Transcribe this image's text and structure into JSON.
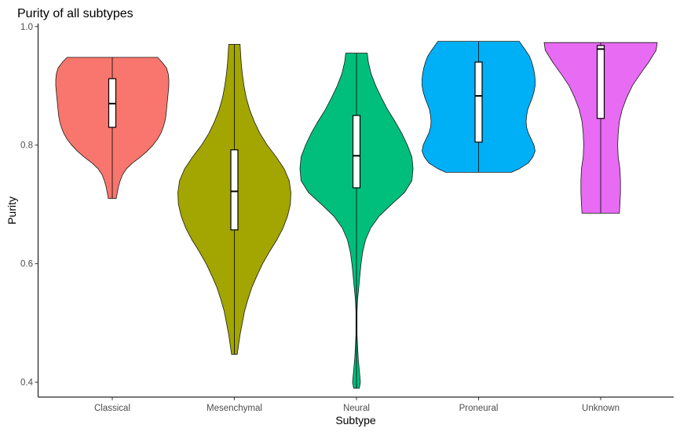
{
  "chart_data": {
    "type": "violin",
    "title": "Purity of all subtypes",
    "xlabel": "Subtype",
    "ylabel": "Purity",
    "ylim": [
      0.375,
      1.005
    ],
    "yticks": [
      0.4,
      0.6,
      0.8,
      1.0
    ],
    "ytick_labels": [
      "0.4",
      "0.6",
      "0.8",
      "1.0"
    ],
    "grid": false,
    "legend": "none",
    "categories": [
      "Classical",
      "Mesenchymal",
      "Neural",
      "Proneural",
      "Unknown"
    ],
    "series": [
      {
        "category": "Classical",
        "color": "#F8766D",
        "min": 0.71,
        "q1": 0.83,
        "median": 0.87,
        "q3": 0.912,
        "max": 0.948,
        "density": [
          [
            0.71,
            0.07
          ],
          [
            0.72,
            0.09
          ],
          [
            0.73,
            0.11
          ],
          [
            0.74,
            0.14
          ],
          [
            0.75,
            0.18
          ],
          [
            0.76,
            0.25
          ],
          [
            0.77,
            0.36
          ],
          [
            0.78,
            0.5
          ],
          [
            0.79,
            0.62
          ],
          [
            0.8,
            0.72
          ],
          [
            0.81,
            0.8
          ],
          [
            0.82,
            0.86
          ],
          [
            0.83,
            0.9
          ],
          [
            0.84,
            0.93
          ],
          [
            0.85,
            0.95
          ],
          [
            0.86,
            0.96
          ],
          [
            0.87,
            0.97
          ],
          [
            0.88,
            0.98
          ],
          [
            0.89,
            0.99
          ],
          [
            0.9,
            1.0
          ],
          [
            0.91,
            1.0
          ],
          [
            0.92,
            0.99
          ],
          [
            0.93,
            0.96
          ],
          [
            0.94,
            0.88
          ],
          [
            0.948,
            0.8
          ]
        ]
      },
      {
        "category": "Mesenchymal",
        "color": "#A3A500",
        "min": 0.447,
        "q1": 0.657,
        "median": 0.722,
        "q3": 0.792,
        "max": 0.97,
        "density": [
          [
            0.447,
            0.05
          ],
          [
            0.46,
            0.07
          ],
          [
            0.48,
            0.1
          ],
          [
            0.5,
            0.14
          ],
          [
            0.52,
            0.18
          ],
          [
            0.54,
            0.24
          ],
          [
            0.56,
            0.31
          ],
          [
            0.58,
            0.4
          ],
          [
            0.6,
            0.5
          ],
          [
            0.62,
            0.62
          ],
          [
            0.64,
            0.75
          ],
          [
            0.66,
            0.86
          ],
          [
            0.68,
            0.94
          ],
          [
            0.7,
            0.99
          ],
          [
            0.72,
            1.0
          ],
          [
            0.74,
            0.97
          ],
          [
            0.76,
            0.88
          ],
          [
            0.78,
            0.74
          ],
          [
            0.8,
            0.58
          ],
          [
            0.82,
            0.45
          ],
          [
            0.84,
            0.35
          ],
          [
            0.86,
            0.27
          ],
          [
            0.88,
            0.21
          ],
          [
            0.9,
            0.17
          ],
          [
            0.92,
            0.14
          ],
          [
            0.94,
            0.12
          ],
          [
            0.97,
            0.1
          ]
        ]
      },
      {
        "category": "Neural",
        "color": "#00BF7D",
        "min": 0.39,
        "q1": 0.728,
        "median": 0.782,
        "q3": 0.85,
        "max": 0.955,
        "density": [
          [
            0.39,
            0.05
          ],
          [
            0.4,
            0.07
          ],
          [
            0.42,
            0.05
          ],
          [
            0.44,
            0.03
          ],
          [
            0.46,
            0.02
          ],
          [
            0.48,
            0.01
          ],
          [
            0.5,
            0.01
          ],
          [
            0.52,
            0.01
          ],
          [
            0.54,
            0.02
          ],
          [
            0.56,
            0.04
          ],
          [
            0.58,
            0.06
          ],
          [
            0.6,
            0.08
          ],
          [
            0.62,
            0.11
          ],
          [
            0.64,
            0.16
          ],
          [
            0.66,
            0.25
          ],
          [
            0.68,
            0.4
          ],
          [
            0.7,
            0.62
          ],
          [
            0.72,
            0.85
          ],
          [
            0.74,
            0.98
          ],
          [
            0.76,
            1.0
          ],
          [
            0.78,
            0.98
          ],
          [
            0.8,
            0.9
          ],
          [
            0.82,
            0.8
          ],
          [
            0.84,
            0.68
          ],
          [
            0.86,
            0.55
          ],
          [
            0.88,
            0.44
          ],
          [
            0.9,
            0.34
          ],
          [
            0.92,
            0.26
          ],
          [
            0.94,
            0.21
          ],
          [
            0.955,
            0.19
          ]
        ]
      },
      {
        "category": "Proneural",
        "color": "#00B0F6",
        "min": 0.754,
        "q1": 0.805,
        "median": 0.883,
        "q3": 0.94,
        "max": 0.975,
        "density": [
          [
            0.754,
            0.58
          ],
          [
            0.76,
            0.72
          ],
          [
            0.77,
            0.88
          ],
          [
            0.78,
            0.96
          ],
          [
            0.79,
            1.0
          ],
          [
            0.8,
            0.98
          ],
          [
            0.81,
            0.93
          ],
          [
            0.82,
            0.88
          ],
          [
            0.83,
            0.85
          ],
          [
            0.84,
            0.84
          ],
          [
            0.85,
            0.85
          ],
          [
            0.86,
            0.87
          ],
          [
            0.87,
            0.91
          ],
          [
            0.88,
            0.95
          ],
          [
            0.89,
            0.98
          ],
          [
            0.9,
            1.0
          ],
          [
            0.91,
            1.0
          ],
          [
            0.92,
            0.99
          ],
          [
            0.93,
            0.97
          ],
          [
            0.94,
            0.94
          ],
          [
            0.95,
            0.9
          ],
          [
            0.96,
            0.83
          ],
          [
            0.975,
            0.72
          ]
        ]
      },
      {
        "category": "Unknown",
        "color": "#E76BF3",
        "min": 0.685,
        "q1": 0.845,
        "median": 0.962,
        "q3": 0.968,
        "max": 0.973,
        "density": [
          [
            0.685,
            0.33
          ],
          [
            0.7,
            0.34
          ],
          [
            0.72,
            0.35
          ],
          [
            0.74,
            0.35
          ],
          [
            0.76,
            0.34
          ],
          [
            0.78,
            0.31
          ],
          [
            0.8,
            0.3
          ],
          [
            0.82,
            0.31
          ],
          [
            0.84,
            0.33
          ],
          [
            0.86,
            0.38
          ],
          [
            0.88,
            0.46
          ],
          [
            0.9,
            0.56
          ],
          [
            0.92,
            0.7
          ],
          [
            0.94,
            0.85
          ],
          [
            0.96,
            0.98
          ],
          [
            0.973,
            1.0
          ]
        ]
      }
    ]
  }
}
